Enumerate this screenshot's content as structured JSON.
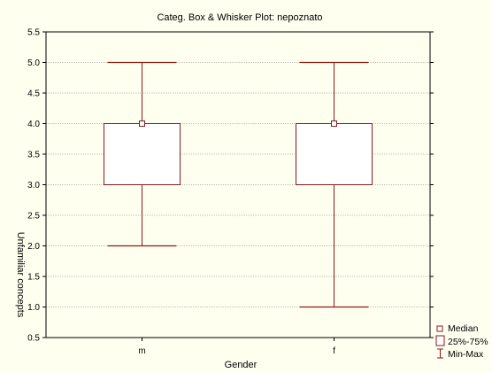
{
  "chart_data": {
    "type": "boxplot",
    "title": "Categ. Box & Whisker Plot: nepoznato",
    "xlabel": "Gender",
    "ylabel": "Unfamiliar concepts",
    "categories": [
      "m",
      "f"
    ],
    "series": [
      {
        "category": "m",
        "min": 2.0,
        "q1": 3.0,
        "median": 4.0,
        "q3": 4.0,
        "max": 5.0
      },
      {
        "category": "f",
        "min": 1.0,
        "q1": 3.0,
        "median": 4.0,
        "q3": 4.0,
        "max": 5.0
      }
    ],
    "ylim": [
      0.5,
      5.5
    ],
    "yticks": [
      "0.5",
      "1.0",
      "1.5",
      "2.0",
      "2.5",
      "3.0",
      "3.5",
      "4.0",
      "4.5",
      "5.0",
      "5.5"
    ],
    "grid": true,
    "legend": {
      "placement": "bottom-right",
      "items": [
        "Median",
        "25%-75%",
        "Min-Max"
      ]
    },
    "colors": {
      "box": "#8b1a1a",
      "grid": "#808080",
      "background": "#fffff0"
    }
  }
}
